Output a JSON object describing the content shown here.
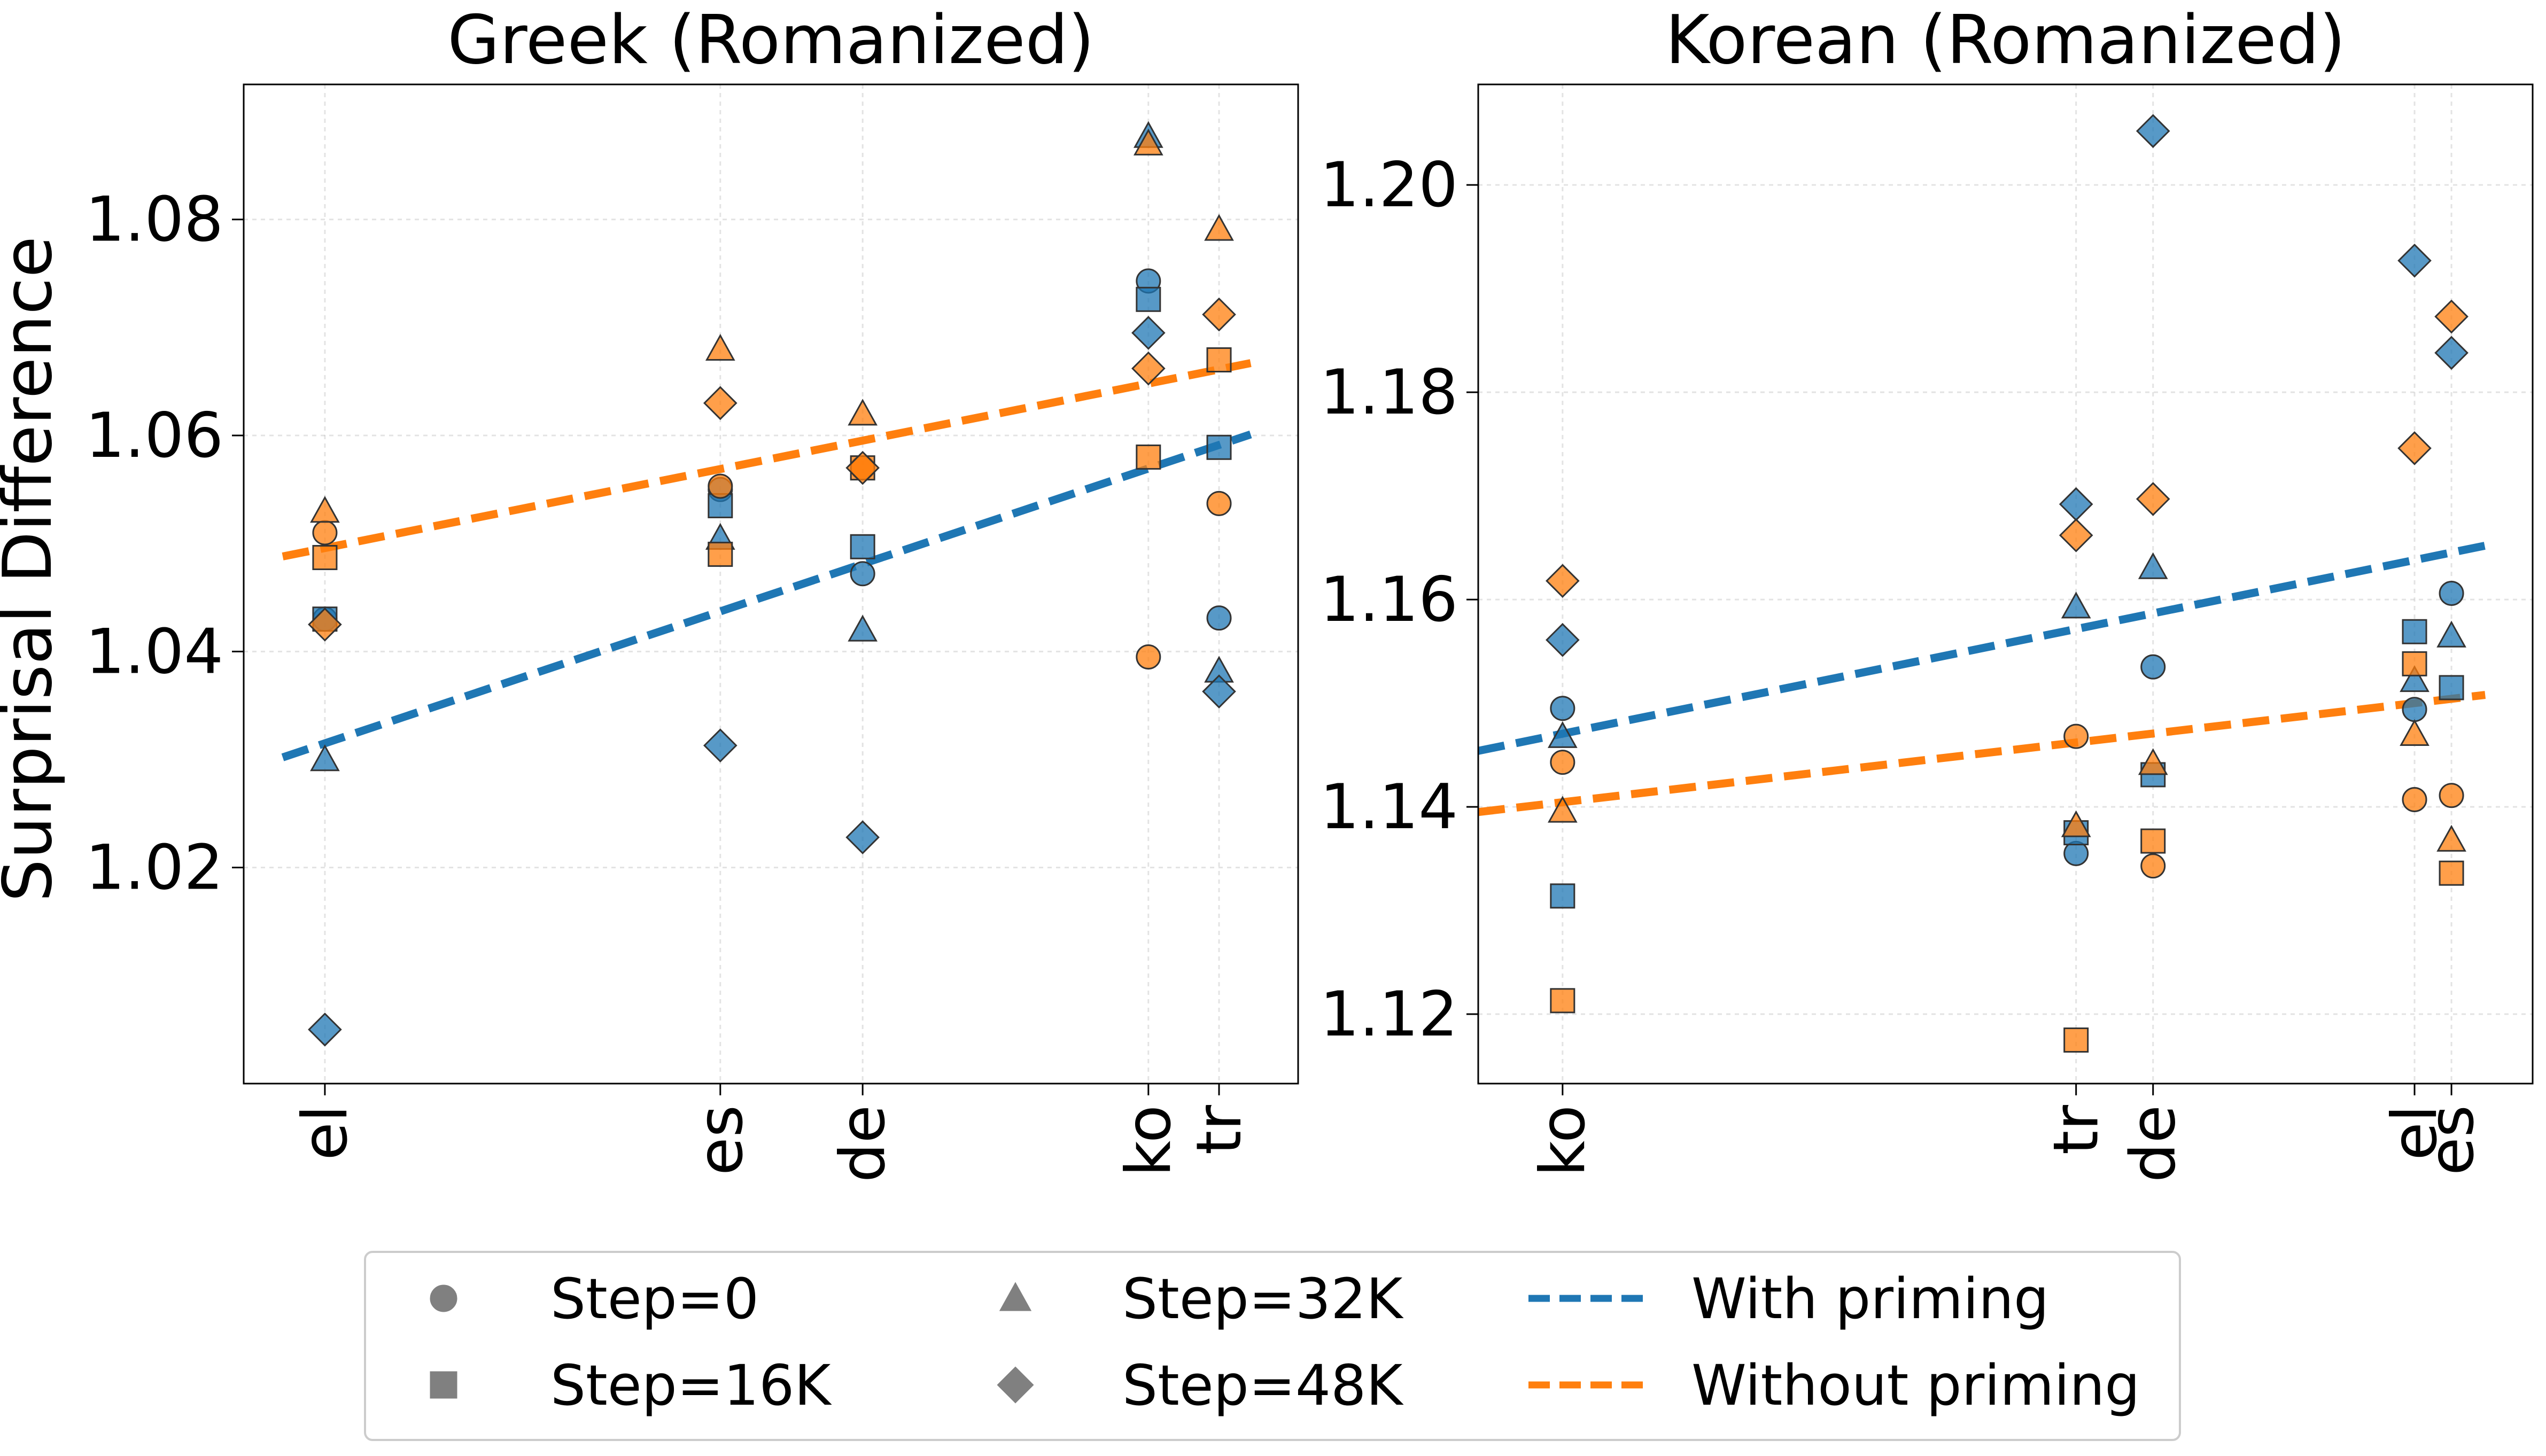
{
  "y_label": "Surprisal Difference",
  "colors": {
    "with_priming": "#1f77b4",
    "without_priming": "#ff7f0e",
    "legend_marker": "#808080"
  },
  "legend": {
    "markers": [
      {
        "name": "step-0",
        "shape": "circle",
        "label": "Step=0"
      },
      {
        "name": "step-16k",
        "shape": "square",
        "label": "Step=16K"
      },
      {
        "name": "step-32k",
        "shape": "triangle",
        "label": "Step=32K"
      },
      {
        "name": "step-48k",
        "shape": "diamond",
        "label": "Step=48K"
      }
    ],
    "lines": [
      {
        "name": "with-priming",
        "label": "With priming"
      },
      {
        "name": "without-priming",
        "label": "Without priming"
      }
    ]
  },
  "chart_data": [
    {
      "type": "scatter",
      "title": "Greek (Romanized)",
      "xlabel": "",
      "ylabel": "Surprisal Difference",
      "xlim": [
        0.0,
        1.0
      ],
      "ylim": [
        1.0,
        1.0925
      ],
      "yticks": [
        1.02,
        1.04,
        1.06,
        1.08
      ],
      "xticks": [
        {
          "label": "el",
          "x": 0.077
        },
        {
          "label": "es",
          "x": 0.452
        },
        {
          "label": "de",
          "x": 0.587
        },
        {
          "label": "ko",
          "x": 0.858
        },
        {
          "label": "tr",
          "x": 0.925
        }
      ],
      "grid": true,
      "points": [
        {
          "lang": "el",
          "x": 0.077,
          "step": "0",
          "series": "with",
          "y": 1.043
        },
        {
          "lang": "el",
          "x": 0.077,
          "step": "16K",
          "series": "with",
          "y": 1.043
        },
        {
          "lang": "el",
          "x": 0.077,
          "step": "32K",
          "series": "with",
          "y": 1.03
        },
        {
          "lang": "el",
          "x": 0.077,
          "step": "48K",
          "series": "with",
          "y": 1.005
        },
        {
          "lang": "el",
          "x": 0.077,
          "step": "0",
          "series": "without",
          "y": 1.051
        },
        {
          "lang": "el",
          "x": 0.077,
          "step": "16K",
          "series": "without",
          "y": 1.0487
        },
        {
          "lang": "el",
          "x": 0.077,
          "step": "32K",
          "series": "without",
          "y": 1.053
        },
        {
          "lang": "el",
          "x": 0.077,
          "step": "48K",
          "series": "without",
          "y": 1.0425
        },
        {
          "lang": "es",
          "x": 0.452,
          "step": "0",
          "series": "with",
          "y": 1.055
        },
        {
          "lang": "es",
          "x": 0.452,
          "step": "16K",
          "series": "with",
          "y": 1.0535
        },
        {
          "lang": "es",
          "x": 0.452,
          "step": "32K",
          "series": "with",
          "y": 1.0505
        },
        {
          "lang": "es",
          "x": 0.452,
          "step": "48K",
          "series": "with",
          "y": 1.0313
        },
        {
          "lang": "es",
          "x": 0.452,
          "step": "0",
          "series": "without",
          "y": 1.0553
        },
        {
          "lang": "es",
          "x": 0.452,
          "step": "16K",
          "series": "without",
          "y": 1.049
        },
        {
          "lang": "es",
          "x": 0.452,
          "step": "32K",
          "series": "without",
          "y": 1.068
        },
        {
          "lang": "es",
          "x": 0.452,
          "step": "48K",
          "series": "without",
          "y": 1.063
        },
        {
          "lang": "de",
          "x": 0.587,
          "step": "0",
          "series": "with",
          "y": 1.0472
        },
        {
          "lang": "de",
          "x": 0.587,
          "step": "16K",
          "series": "with",
          "y": 1.0497
        },
        {
          "lang": "de",
          "x": 0.587,
          "step": "32K",
          "series": "with",
          "y": 1.042
        },
        {
          "lang": "de",
          "x": 0.587,
          "step": "48K",
          "series": "with",
          "y": 1.0228
        },
        {
          "lang": "de",
          "x": 0.587,
          "step": "0",
          "series": "without",
          "y": 1.057
        },
        {
          "lang": "de",
          "x": 0.587,
          "step": "16K",
          "series": "without",
          "y": 1.057
        },
        {
          "lang": "de",
          "x": 0.587,
          "step": "32K",
          "series": "without",
          "y": 1.062
        },
        {
          "lang": "de",
          "x": 0.587,
          "step": "48K",
          "series": "without",
          "y": 1.057
        },
        {
          "lang": "ko",
          "x": 0.858,
          "step": "0",
          "series": "with",
          "y": 1.0743
        },
        {
          "lang": "ko",
          "x": 0.858,
          "step": "16K",
          "series": "with",
          "y": 1.0726
        },
        {
          "lang": "ko",
          "x": 0.858,
          "step": "32K",
          "series": "with",
          "y": 1.0877
        },
        {
          "lang": "ko",
          "x": 0.858,
          "step": "48K",
          "series": "with",
          "y": 1.0695
        },
        {
          "lang": "ko",
          "x": 0.858,
          "step": "0",
          "series": "without",
          "y": 1.0395
        },
        {
          "lang": "ko",
          "x": 0.858,
          "step": "16K",
          "series": "without",
          "y": 1.058
        },
        {
          "lang": "ko",
          "x": 0.858,
          "step": "32K",
          "series": "without",
          "y": 1.087
        },
        {
          "lang": "ko",
          "x": 0.858,
          "step": "48K",
          "series": "without",
          "y": 1.0662
        },
        {
          "lang": "tr",
          "x": 0.925,
          "step": "0",
          "series": "with",
          "y": 1.0431
        },
        {
          "lang": "tr",
          "x": 0.925,
          "step": "16K",
          "series": "with",
          "y": 1.0589
        },
        {
          "lang": "tr",
          "x": 0.925,
          "step": "32K",
          "series": "with",
          "y": 1.0382
        },
        {
          "lang": "tr",
          "x": 0.925,
          "step": "48K",
          "series": "with",
          "y": 1.0363
        },
        {
          "lang": "tr",
          "x": 0.925,
          "step": "0",
          "series": "without",
          "y": 1.0537
        },
        {
          "lang": "tr",
          "x": 0.925,
          "step": "16K",
          "series": "without",
          "y": 1.067
        },
        {
          "lang": "tr",
          "x": 0.925,
          "step": "32K",
          "series": "without",
          "y": 1.0791
        },
        {
          "lang": "tr",
          "x": 0.925,
          "step": "48K",
          "series": "without",
          "y": 1.0712
        }
      ],
      "fit_lines": [
        {
          "series": "with",
          "label": "With priming",
          "x": [
            0.037,
            0.955
          ],
          "y": [
            1.0302,
            1.0601
          ]
        },
        {
          "series": "without",
          "label": "Without priming",
          "x": [
            0.037,
            0.955
          ],
          "y": [
            1.0488,
            1.0667
          ]
        }
      ]
    },
    {
      "type": "scatter",
      "title": "Korean (Romanized)",
      "xlabel": "",
      "ylabel": "",
      "xlim": [
        0.0,
        1.0
      ],
      "ylim": [
        1.1133,
        1.2097
      ],
      "yticks": [
        1.12,
        1.14,
        1.16,
        1.18,
        1.2
      ],
      "xticks": [
        {
          "label": "ko",
          "x": 0.08
        },
        {
          "label": "tr",
          "x": 0.567
        },
        {
          "label": "de",
          "x": 0.64
        },
        {
          "label": "el",
          "x": 0.888
        },
        {
          "label": "es",
          "x": 0.923
        }
      ],
      "grid": true,
      "points": [
        {
          "lang": "ko",
          "x": 0.08,
          "step": "0",
          "series": "with",
          "y": 1.1495
        },
        {
          "lang": "ko",
          "x": 0.08,
          "step": "16K",
          "series": "with",
          "y": 1.1314
        },
        {
          "lang": "ko",
          "x": 0.08,
          "step": "32K",
          "series": "with",
          "y": 1.1468
        },
        {
          "lang": "ko",
          "x": 0.08,
          "step": "48K",
          "series": "with",
          "y": 1.1561
        },
        {
          "lang": "ko",
          "x": 0.08,
          "step": "0",
          "series": "without",
          "y": 1.1443
        },
        {
          "lang": "ko",
          "x": 0.08,
          "step": "16K",
          "series": "without",
          "y": 1.1213
        },
        {
          "lang": "ko",
          "x": 0.08,
          "step": "32K",
          "series": "without",
          "y": 1.1396
        },
        {
          "lang": "ko",
          "x": 0.08,
          "step": "48K",
          "series": "without",
          "y": 1.1618
        },
        {
          "lang": "tr",
          "x": 0.567,
          "step": "0",
          "series": "with",
          "y": 1.1355
        },
        {
          "lang": "tr",
          "x": 0.567,
          "step": "16K",
          "series": "with",
          "y": 1.1375
        },
        {
          "lang": "tr",
          "x": 0.567,
          "step": "32K",
          "series": "with",
          "y": 1.1593
        },
        {
          "lang": "tr",
          "x": 0.567,
          "step": "48K",
          "series": "with",
          "y": 1.1692
        },
        {
          "lang": "tr",
          "x": 0.567,
          "step": "0",
          "series": "without",
          "y": 1.1468
        },
        {
          "lang": "tr",
          "x": 0.567,
          "step": "16K",
          "series": "without",
          "y": 1.1175
        },
        {
          "lang": "tr",
          "x": 0.567,
          "step": "32K",
          "series": "without",
          "y": 1.1382
        },
        {
          "lang": "tr",
          "x": 0.567,
          "step": "48K",
          "series": "without",
          "y": 1.1662
        },
        {
          "lang": "de",
          "x": 0.64,
          "step": "0",
          "series": "with",
          "y": 1.1535
        },
        {
          "lang": "de",
          "x": 0.64,
          "step": "16K",
          "series": "with",
          "y": 1.1431
        },
        {
          "lang": "de",
          "x": 0.64,
          "step": "32K",
          "series": "with",
          "y": 1.1631
        },
        {
          "lang": "de",
          "x": 0.64,
          "step": "48K",
          "series": "with",
          "y": 1.2052
        },
        {
          "lang": "de",
          "x": 0.64,
          "step": "0",
          "series": "without",
          "y": 1.1343
        },
        {
          "lang": "de",
          "x": 0.64,
          "step": "16K",
          "series": "without",
          "y": 1.1367
        },
        {
          "lang": "de",
          "x": 0.64,
          "step": "32K",
          "series": "without",
          "y": 1.1442
        },
        {
          "lang": "de",
          "x": 0.64,
          "step": "48K",
          "series": "without",
          "y": 1.1697
        },
        {
          "lang": "el",
          "x": 0.888,
          "step": "0",
          "series": "with",
          "y": 1.1494
        },
        {
          "lang": "el",
          "x": 0.888,
          "step": "16K",
          "series": "with",
          "y": 1.1569
        },
        {
          "lang": "el",
          "x": 0.888,
          "step": "32K",
          "series": "with",
          "y": 1.1522
        },
        {
          "lang": "el",
          "x": 0.888,
          "step": "48K",
          "series": "with",
          "y": 1.1927
        },
        {
          "lang": "el",
          "x": 0.888,
          "step": "0",
          "series": "without",
          "y": 1.1407
        },
        {
          "lang": "el",
          "x": 0.888,
          "step": "16K",
          "series": "without",
          "y": 1.1538
        },
        {
          "lang": "el",
          "x": 0.888,
          "step": "32K",
          "series": "without",
          "y": 1.147
        },
        {
          "lang": "el",
          "x": 0.888,
          "step": "48K",
          "series": "without",
          "y": 1.1746
        },
        {
          "lang": "es",
          "x": 0.923,
          "step": "0",
          "series": "with",
          "y": 1.1606
        },
        {
          "lang": "es",
          "x": 0.923,
          "step": "16K",
          "series": "with",
          "y": 1.1515
        },
        {
          "lang": "es",
          "x": 0.923,
          "step": "32K",
          "series": "with",
          "y": 1.1565
        },
        {
          "lang": "es",
          "x": 0.923,
          "step": "48K",
          "series": "with",
          "y": 1.1838
        },
        {
          "lang": "es",
          "x": 0.923,
          "step": "0",
          "series": "without",
          "y": 1.1411
        },
        {
          "lang": "es",
          "x": 0.923,
          "step": "16K",
          "series": "without",
          "y": 1.1336
        },
        {
          "lang": "es",
          "x": 0.923,
          "step": "32K",
          "series": "without",
          "y": 1.1368
        },
        {
          "lang": "es",
          "x": 0.923,
          "step": "48K",
          "series": "without",
          "y": 1.1873
        }
      ],
      "fit_lines": [
        {
          "series": "with",
          "label": "With priming",
          "x": [
            0.0,
            0.955
          ],
          "y": [
            1.1454,
            1.1652
          ]
        },
        {
          "series": "without",
          "label": "Without priming",
          "x": [
            0.0,
            0.955
          ],
          "y": [
            1.1395,
            1.1508
          ]
        }
      ]
    }
  ]
}
